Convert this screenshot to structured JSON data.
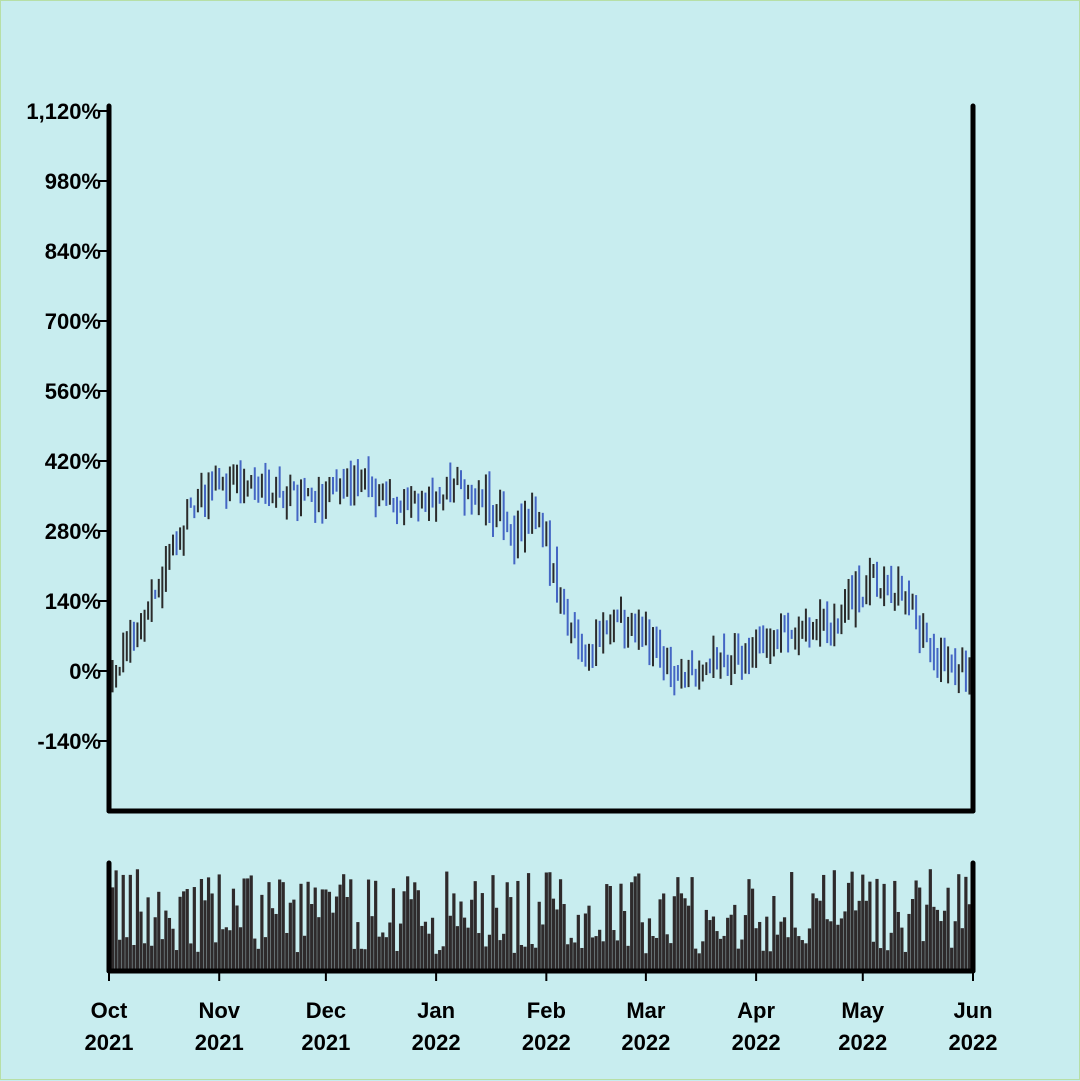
{
  "chart_data": {
    "type": "ohlc",
    "y_axis": {
      "ticks": [
        "1,120%",
        "980%",
        "840%",
        "700%",
        "560%",
        "420%",
        "280%",
        "140%",
        "0%",
        "-140%"
      ],
      "tick_values": [
        1120,
        980,
        840,
        700,
        560,
        420,
        280,
        140,
        0,
        -140
      ],
      "range": [
        -270,
        1120
      ]
    },
    "x_axis": {
      "range": [
        "2021-10-01",
        "2022-06-01"
      ],
      "ticks": [
        {
          "month": "Oct",
          "year": "2021",
          "date": "2021-10-01"
        },
        {
          "month": "Nov",
          "year": "2021",
          "date": "2021-11-01"
        },
        {
          "month": "Dec",
          "year": "2021",
          "date": "2021-12-01"
        },
        {
          "month": "Jan",
          "year": "2022",
          "date": "2022-01-01"
        },
        {
          "month": "Feb",
          "year": "2022",
          "date": "2022-02-01"
        },
        {
          "month": "Mar",
          "year": "2022",
          "date": "2022-03-01"
        },
        {
          "month": "Apr",
          "year": "2022",
          "date": "2022-04-01"
        },
        {
          "month": "May",
          "year": "2022",
          "date": "2022-05-01"
        },
        {
          "month": "Jun",
          "year": "2022",
          "date": "2022-06-01"
        }
      ]
    },
    "trend_anchors": [
      {
        "date": "2021-10-01",
        "value": 0
      },
      {
        "date": "2021-10-08",
        "value": 60
      },
      {
        "date": "2021-10-15",
        "value": 180
      },
      {
        "date": "2021-10-22",
        "value": 300
      },
      {
        "date": "2021-11-01",
        "value": 380
      },
      {
        "date": "2021-11-15",
        "value": 370
      },
      {
        "date": "2021-12-01",
        "value": 350
      },
      {
        "date": "2021-12-10",
        "value": 390
      },
      {
        "date": "2021-12-25",
        "value": 320
      },
      {
        "date": "2022-01-05",
        "value": 370
      },
      {
        "date": "2022-01-15",
        "value": 340
      },
      {
        "date": "2022-01-22",
        "value": 270
      },
      {
        "date": "2022-01-30",
        "value": 300
      },
      {
        "date": "2022-02-05",
        "value": 140
      },
      {
        "date": "2022-02-12",
        "value": 40
      },
      {
        "date": "2022-02-20",
        "value": 110
      },
      {
        "date": "2022-02-28",
        "value": 80
      },
      {
        "date": "2022-03-10",
        "value": -20
      },
      {
        "date": "2022-03-20",
        "value": 10
      },
      {
        "date": "2022-04-01",
        "value": 50
      },
      {
        "date": "2022-04-10",
        "value": 80
      },
      {
        "date": "2022-04-20",
        "value": 90
      },
      {
        "date": "2022-05-01",
        "value": 160
      },
      {
        "date": "2022-05-08",
        "value": 170
      },
      {
        "date": "2022-05-15",
        "value": 110
      },
      {
        "date": "2022-05-22",
        "value": 10
      },
      {
        "date": "2022-06-01",
        "value": 0
      }
    ],
    "bar_colors": {
      "up": "#2b2b2b",
      "down": "#4466c4"
    },
    "volume_color": "#2e2a2b",
    "background": "#c8edef",
    "grid": false,
    "legend": "none"
  }
}
